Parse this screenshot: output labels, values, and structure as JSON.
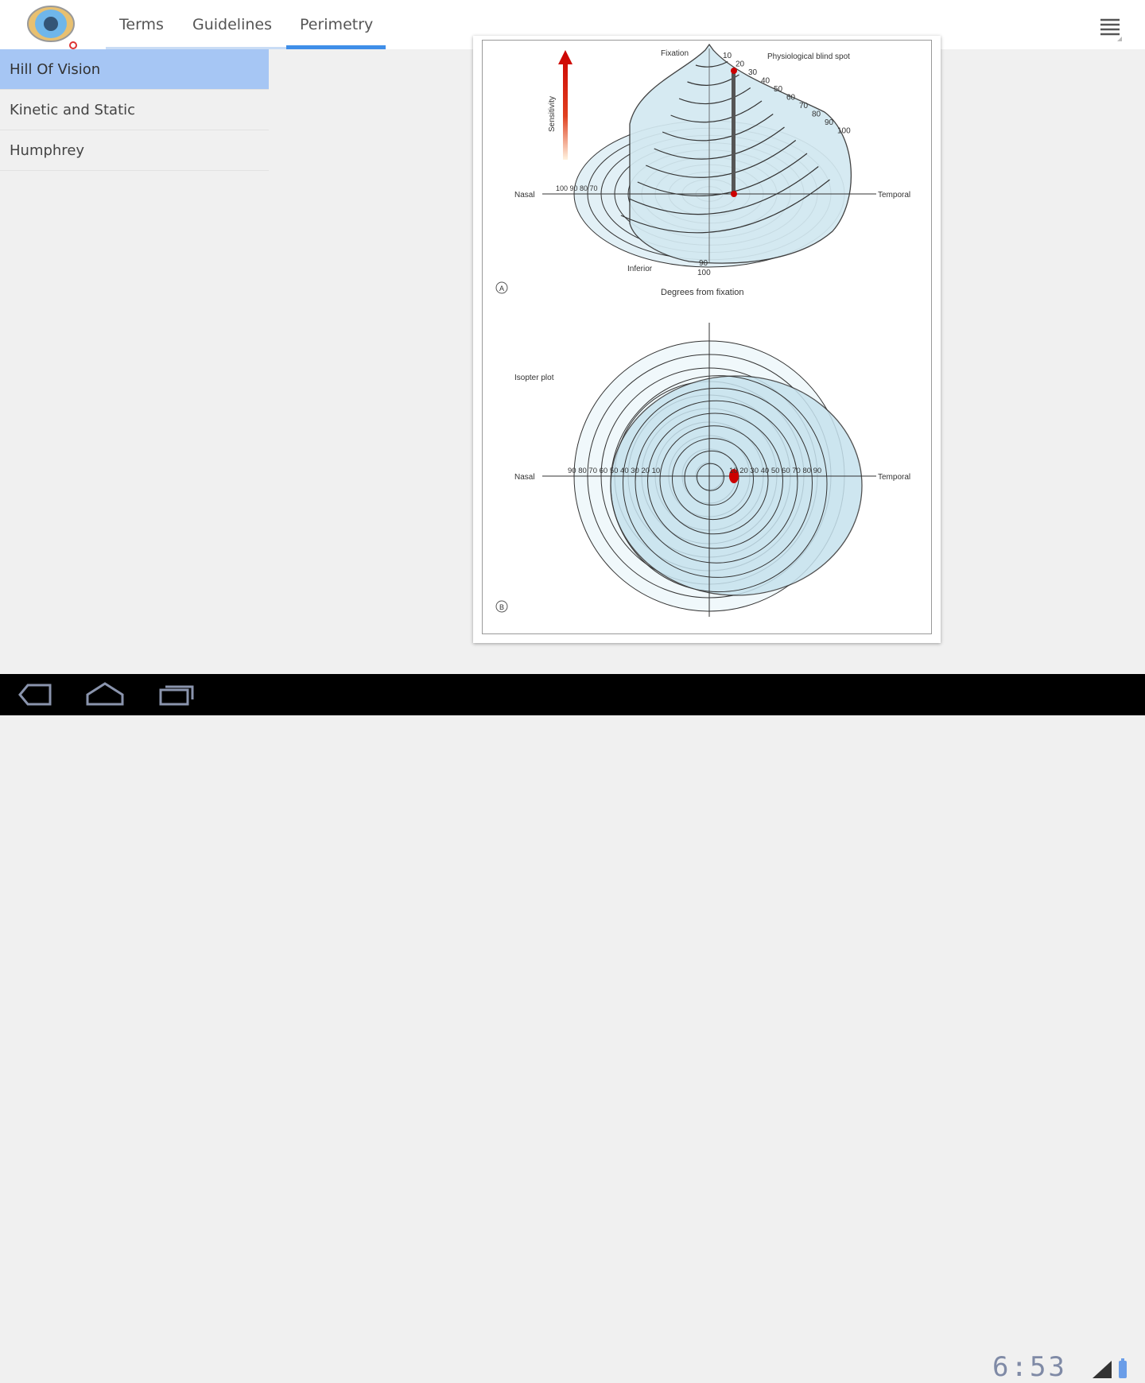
{
  "header": {
    "tabs": [
      {
        "label": "Terms"
      },
      {
        "label": "Guidelines"
      },
      {
        "label": "Perimetry",
        "selected": true
      }
    ],
    "logo": "eye-logo",
    "menu_icon": "overflow-menu-icon"
  },
  "sidebar": {
    "items": [
      {
        "label": "Hill Of Vision",
        "selected": true
      },
      {
        "label": "Kinetic and Static"
      },
      {
        "label": "Humphrey"
      }
    ]
  },
  "figure": {
    "a": {
      "fixation": "Fixation",
      "blind_spot": "Physiological blind spot",
      "sensitivity": "Sensitivity",
      "nasal": "Nasal",
      "temporal": "Temporal",
      "contours": [
        "10",
        "20",
        "30",
        "40",
        "50",
        "60",
        "70",
        "80",
        "90",
        "100"
      ],
      "nasal_ticks": "100 90 80 70",
      "inferior": "Inferior",
      "inferior_90": "90",
      "inferior_100": "100",
      "panel": "A",
      "caption": "Degrees from fixation"
    },
    "b": {
      "title": "Isopter plot",
      "nasal": "Nasal",
      "temporal": "Temporal",
      "nasal_ticks": "90 80 70 60 50 40 30 20 10",
      "temporal_ticks": "10 20 30 40 50 60 70 80 90",
      "panel": "B"
    }
  },
  "statusbar": {
    "time": "6:53"
  },
  "colors": {
    "accent": "#3f8ee8",
    "selected": "#a6c6f4",
    "figure_fill": "#d3e9f1",
    "blind_spot": "#cc0000"
  }
}
